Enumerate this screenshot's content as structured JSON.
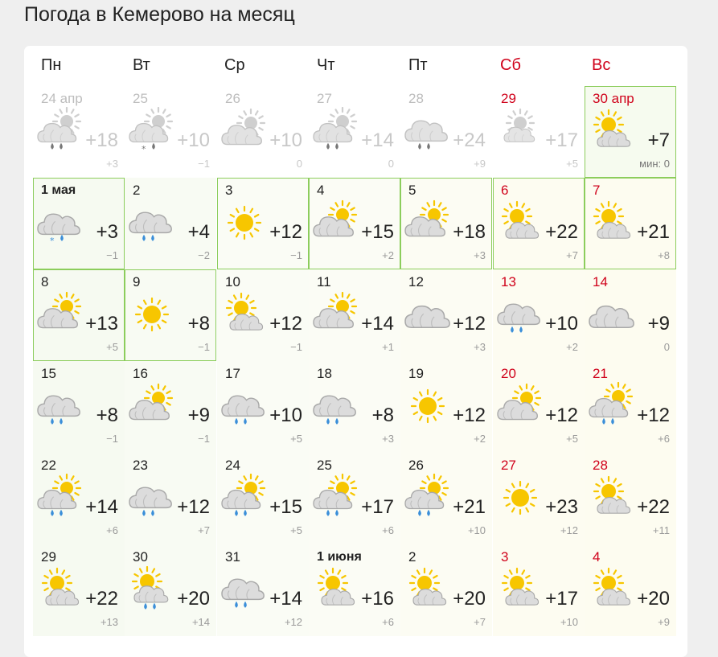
{
  "title": "Погода в Кемерово на месяц",
  "weekdays": [
    {
      "label": "Пн",
      "weekend": false
    },
    {
      "label": "Вт",
      "weekend": false
    },
    {
      "label": "Ср",
      "weekend": false
    },
    {
      "label": "Чт",
      "weekend": false
    },
    {
      "label": "Пт",
      "weekend": false
    },
    {
      "label": "Сб",
      "weekend": true
    },
    {
      "label": "Вс",
      "weekend": true
    }
  ],
  "weeks": [
    [
      {
        "date": "24 апр",
        "day": "+18",
        "night": "+3",
        "icon": "cloud-sun-rain-icon",
        "past": true
      },
      {
        "date": "25",
        "day": "+10",
        "night": "−1",
        "icon": "cloud-sun-sleet-icon",
        "past": true
      },
      {
        "date": "26",
        "day": "+10",
        "night": "0",
        "icon": "cloud-sun-icon",
        "past": true
      },
      {
        "date": "27",
        "day": "+14",
        "night": "0",
        "icon": "cloud-sun-rain-icon",
        "past": true
      },
      {
        "date": "28",
        "day": "+24",
        "night": "+9",
        "icon": "cloud-rain-icon",
        "past": true
      },
      {
        "date": "29",
        "day": "+17",
        "night": "+5",
        "icon": "cloud-sun-faded-icon",
        "past": true,
        "weekend": true
      },
      {
        "date": "30 апр",
        "day": "+7",
        "night": "мин: 0",
        "icon": "sun-cloud-icon",
        "weekend": true,
        "today": true
      }
    ],
    [
      {
        "date": "1 мая",
        "day": "+3",
        "night": "−1",
        "icon": "cloud-sleet-icon",
        "bold": true
      },
      {
        "date": "2",
        "day": "+4",
        "night": "−2",
        "icon": "cloud-rain-icon"
      },
      {
        "date": "3",
        "day": "+12",
        "night": "−1",
        "icon": "sun-icon"
      },
      {
        "date": "4",
        "day": "+15",
        "night": "+2",
        "icon": "cloud-sun-icon"
      },
      {
        "date": "5",
        "day": "+18",
        "night": "+3",
        "icon": "cloud-sun-icon"
      },
      {
        "date": "6",
        "day": "+22",
        "night": "+7",
        "icon": "sun-cloud-icon",
        "weekend": true
      },
      {
        "date": "7",
        "day": "+21",
        "night": "+8",
        "icon": "sun-cloud-icon",
        "weekend": true
      }
    ],
    [
      {
        "date": "8",
        "day": "+13",
        "night": "+5",
        "icon": "cloud-sun-icon"
      },
      {
        "date": "9",
        "day": "+8",
        "night": "−1",
        "icon": "sun-icon"
      },
      {
        "date": "10",
        "day": "+12",
        "night": "−1",
        "icon": "sun-cloud-icon"
      },
      {
        "date": "11",
        "day": "+14",
        "night": "+1",
        "icon": "cloud-sun-icon"
      },
      {
        "date": "12",
        "day": "+12",
        "night": "+3",
        "icon": "cloud-icon"
      },
      {
        "date": "13",
        "day": "+10",
        "night": "+2",
        "icon": "cloud-rain-icon",
        "weekend": true
      },
      {
        "date": "14",
        "day": "+9",
        "night": "0",
        "icon": "cloud-icon",
        "weekend": true
      }
    ],
    [
      {
        "date": "15",
        "day": "+8",
        "night": "−1",
        "icon": "cloud-rain-icon"
      },
      {
        "date": "16",
        "day": "+9",
        "night": "−1",
        "icon": "cloud-sun-icon"
      },
      {
        "date": "17",
        "day": "+10",
        "night": "+5",
        "icon": "cloud-rain-icon"
      },
      {
        "date": "18",
        "day": "+8",
        "night": "+3",
        "icon": "cloud-rain-icon"
      },
      {
        "date": "19",
        "day": "+12",
        "night": "+2",
        "icon": "sun-icon"
      },
      {
        "date": "20",
        "day": "+12",
        "night": "+5",
        "icon": "cloud-sun-icon",
        "weekend": true
      },
      {
        "date": "21",
        "day": "+12",
        "night": "+6",
        "icon": "cloud-sun-rain-icon",
        "weekend": true
      }
    ],
    [
      {
        "date": "22",
        "day": "+14",
        "night": "+6",
        "icon": "cloud-sun-rain-icon"
      },
      {
        "date": "23",
        "day": "+12",
        "night": "+7",
        "icon": "cloud-rain-icon"
      },
      {
        "date": "24",
        "day": "+15",
        "night": "+5",
        "icon": "cloud-sun-rain-icon"
      },
      {
        "date": "25",
        "day": "+17",
        "night": "+6",
        "icon": "cloud-sun-rain-icon"
      },
      {
        "date": "26",
        "day": "+21",
        "night": "+10",
        "icon": "cloud-sun-rain-icon"
      },
      {
        "date": "27",
        "day": "+23",
        "night": "+12",
        "icon": "sun-icon",
        "weekend": true
      },
      {
        "date": "28",
        "day": "+22",
        "night": "+11",
        "icon": "sun-cloud-icon",
        "weekend": true
      }
    ],
    [
      {
        "date": "29",
        "day": "+22",
        "night": "+13",
        "icon": "sun-cloud-icon"
      },
      {
        "date": "30",
        "day": "+20",
        "night": "+14",
        "icon": "sun-cloud-rain-icon"
      },
      {
        "date": "31",
        "day": "+14",
        "night": "+12",
        "icon": "cloud-rain-icon"
      },
      {
        "date": "1 июня",
        "day": "+16",
        "night": "+6",
        "icon": "sun-cloud-icon",
        "bold": true
      },
      {
        "date": "2",
        "day": "+20",
        "night": "+7",
        "icon": "sun-cloud-icon"
      },
      {
        "date": "3",
        "day": "+17",
        "night": "+10",
        "icon": "sun-cloud-icon",
        "weekend": true
      },
      {
        "date": "4",
        "day": "+20",
        "night": "+9",
        "icon": "sun-cloud-icon",
        "weekend": true
      }
    ]
  ],
  "colors": {
    "weekend": "#d0021b",
    "frame": "#8ccd5c",
    "sun": "#f7c600",
    "cloud": "#d9d9d9",
    "rain": "#3b8fd9"
  }
}
